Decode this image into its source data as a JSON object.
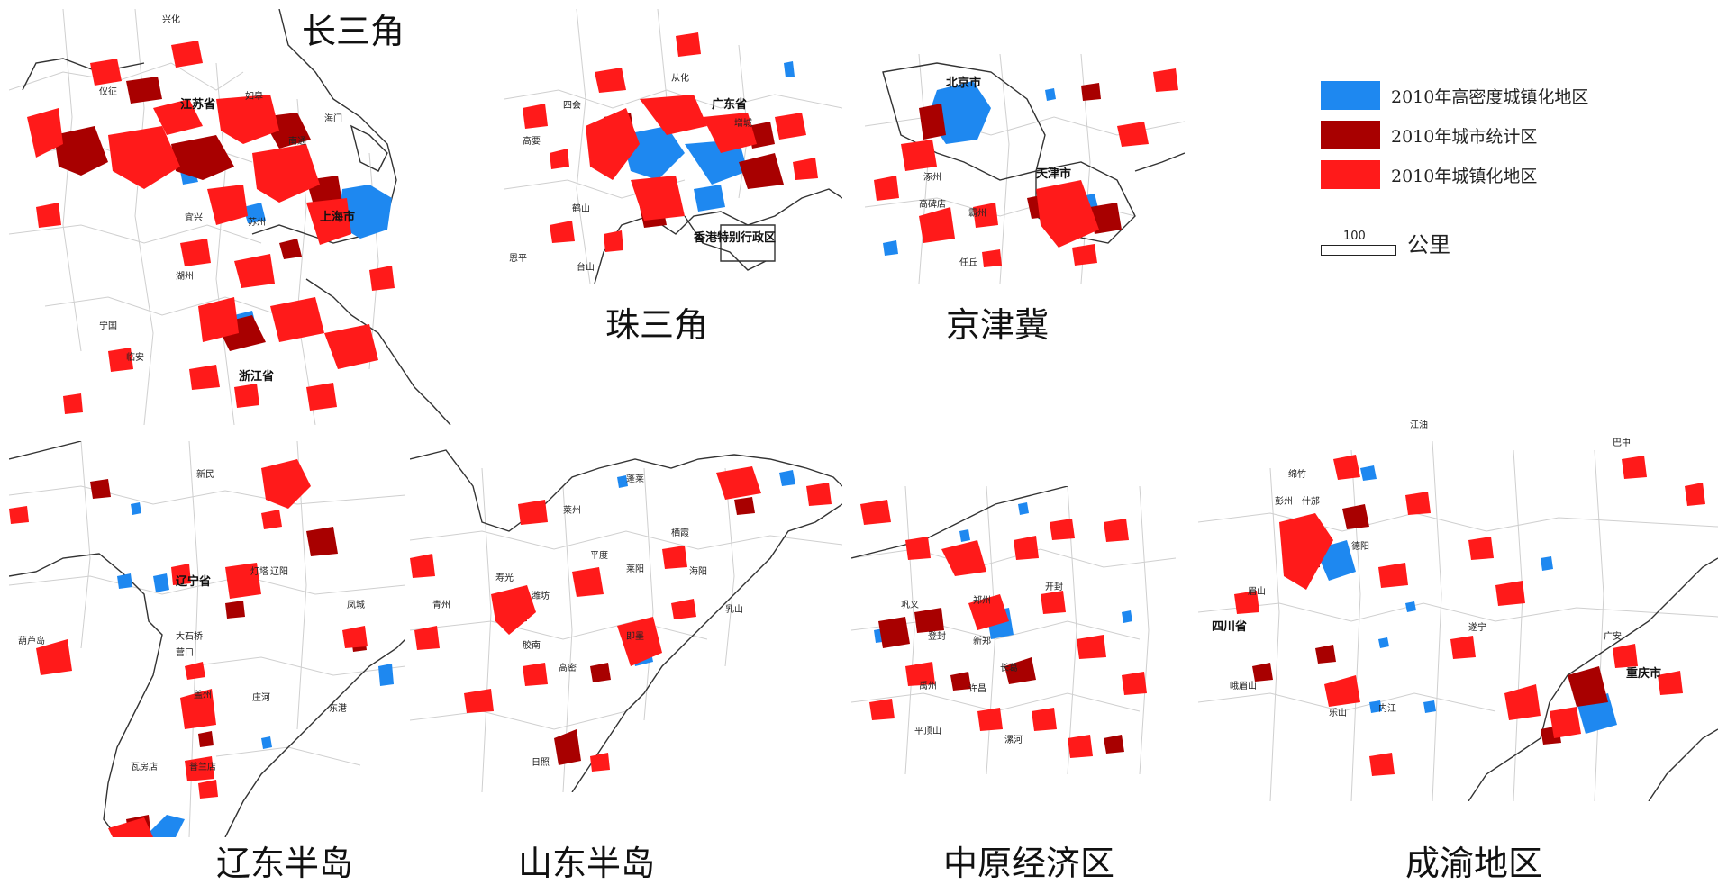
{
  "colors": {
    "high_density": "#1e88f0",
    "city_stat": "#a80000",
    "urbanized": "#ff1a1a",
    "boundary": "#cfcfcf",
    "coast": "#333333"
  },
  "legend": {
    "items": [
      {
        "label": "2010年高密度城镇化地区",
        "color": "#1e88f0"
      },
      {
        "label": "2010年城市统计区",
        "color": "#a80000"
      },
      {
        "label": "2010年城镇化地区",
        "color": "#ff1a1a"
      }
    ],
    "scale_value": "100",
    "scale_unit": "公里"
  },
  "regions": {
    "yangtze": {
      "title": "长三角",
      "places": [
        "江苏省",
        "上海市",
        "浙江省",
        "兴化",
        "如皋",
        "南通",
        "海门",
        "宜兴",
        "湖州",
        "宁国",
        "临安",
        "仪征",
        "苏州"
      ]
    },
    "prd": {
      "title": "珠三角",
      "places": [
        "广东省",
        "香港特别行政区",
        "四会",
        "高要",
        "鹤山",
        "台山",
        "恩平",
        "从化",
        "增城"
      ]
    },
    "jingjinji": {
      "title": "京津冀",
      "places": [
        "北京市",
        "天津市",
        "高碑店",
        "霸州",
        "涿州",
        "任丘"
      ]
    },
    "liaodong": {
      "title": "辽东半岛",
      "places": [
        "辽宁省",
        "新民",
        "辽阳",
        "灯塔",
        "大石桥",
        "营口",
        "盖州",
        "庄河",
        "瓦房店",
        "普兰店",
        "葫芦岛",
        "凤城",
        "东港"
      ]
    },
    "shandong": {
      "title": "山东半岛",
      "places": [
        "寿光",
        "潍坊",
        "青州",
        "高密",
        "胶南",
        "日照",
        "即墨",
        "莱阳",
        "海阳",
        "栖霞",
        "蓬莱",
        "乳山",
        "平度",
        "莱州"
      ]
    },
    "zhongyuan": {
      "title": "中原经济区",
      "places": [
        "郑州",
        "开封",
        "新郑",
        "许昌",
        "平顶山",
        "巩义",
        "登封",
        "长葛",
        "禹州",
        "漯河"
      ]
    },
    "chengyu": {
      "title": "成渝地区",
      "places": [
        "四川省",
        "重庆市",
        "绵竹",
        "彭州",
        "什邡",
        "德阳",
        "遂宁",
        "广安",
        "内江",
        "乐山",
        "峨眉山",
        "眉山",
        "江油",
        "巴中"
      ]
    }
  }
}
